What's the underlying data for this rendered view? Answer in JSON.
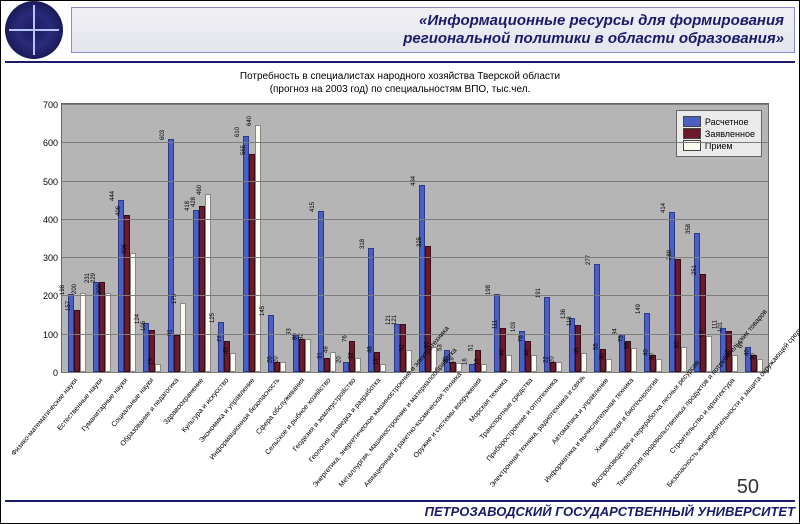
{
  "title_l1": "«Информационные ресурсы для формирования",
  "title_l2": "региональной политики в области образования»",
  "sub_l1": "Потребность в специалистах народного хозяйства Тверской области",
  "sub_l2": "(прогноз на 2003 год) по специальностям ВПО, тыс.чел.",
  "footer": "ПЕТРОЗАВОДСКИЙ ГОСУДАРСТВЕННЫЙ УНИВЕРСИТЕТ",
  "page": "50",
  "chart": {
    "type": "bar",
    "ymin": 0,
    "ymax": 700,
    "ytick": 100,
    "bg": "#b5b5b5",
    "grid": "#7c7c7c",
    "series": [
      {
        "name": "Расчетное",
        "color": "#4a5fc1"
      },
      {
        "name": "Заявленное",
        "color": "#6a1a2a"
      },
      {
        "name": "Прием",
        "color": "#fafaf0"
      }
    ],
    "categories": [
      "Физико-математические науки",
      "Естественные науки",
      "Гуманитарные науки",
      "Социальные науки",
      "Образование и педагогика",
      "Здравоохранение",
      "Культура и искусство",
      "Экономика и управление",
      "Информационная безопасность",
      "Сфера обслуживания",
      "Сельское и рыбное хозяйство",
      "Геодезия и землеустройство",
      "Геология, разведка и разработка",
      "Энергетика, энергетическое машиностроение и электротехника",
      "Металлургия, машиностроение и материалообработка",
      "Авиационная и ракетно-космическая техника",
      "Оружие и системы вооружения",
      "Морская техника",
      "Транспортные средства",
      "Приборостроение и оптотехника",
      "Электронная техника, радиотехника и связь",
      "Автоматика и управление",
      "Информатика и вычислительная техника",
      "Химическая и биотехнологии",
      "Воспроизводство и переработка лесных ресурсов",
      "Технология продовольственных продуктов и потребительских товаров",
      "Строительство и архитектура",
      "Безопасность жизнедеятельности и защита окружающей среды"
    ],
    "values": [
      [
        198,
        157,
        200
      ],
      [
        231,
        229,
        200
      ],
      [
        444,
        406,
        306
      ],
      [
        124,
        105,
        15
      ],
      [
        603,
        91,
        175
      ],
      [
        418,
        428,
        460
      ],
      [
        125,
        77,
        45
      ],
      [
        610,
        565,
        640
      ],
      [
        145,
        20,
        20
      ],
      [
        93,
        80,
        82
      ],
      [
        415,
        31,
        48
      ],
      [
        20,
        76,
        32
      ],
      [
        318,
        48,
        15
      ],
      [
        121,
        121,
        52
      ],
      [
        484,
        325,
        60
      ],
      [
        53,
        20,
        18
      ],
      [
        16,
        51,
        15
      ],
      [
        198,
        111,
        40
      ],
      [
        103,
        76,
        40
      ],
      [
        191,
        22,
        20
      ],
      [
        136,
        118,
        45
      ],
      [
        277,
        55,
        30
      ],
      [
        94,
        75,
        58
      ],
      [
        149,
        40,
        30
      ],
      [
        414,
        289,
        60
      ],
      [
        358,
        251,
        90
      ],
      [
        111,
        101,
        40
      ],
      [
        60,
        40,
        30
      ]
    ]
  }
}
